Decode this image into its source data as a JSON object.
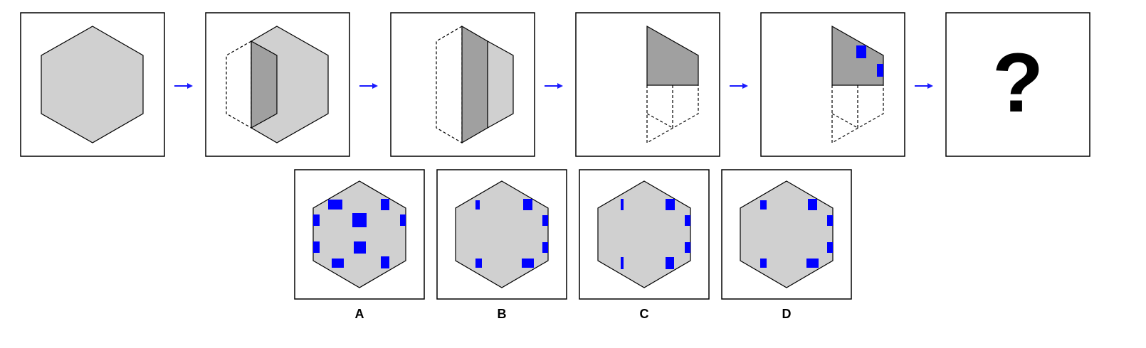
{
  "sequence": {
    "steps": [
      {
        "id": "step-1",
        "description_hidden": true
      },
      {
        "id": "step-2"
      },
      {
        "id": "step-3"
      },
      {
        "id": "step-4"
      },
      {
        "id": "step-5"
      }
    ],
    "question_mark": "?"
  },
  "options": [
    {
      "label": "A"
    },
    {
      "label": "B"
    },
    {
      "label": "C"
    },
    {
      "label": "D"
    }
  ],
  "colors": {
    "light_fill": "#d0d0d0",
    "dark_fill": "#a0a0a0",
    "hole": "#0000ff",
    "arrow": "#1a1aff",
    "stroke": "#000000"
  },
  "icons": {
    "arrow": "arrow-right-icon"
  }
}
